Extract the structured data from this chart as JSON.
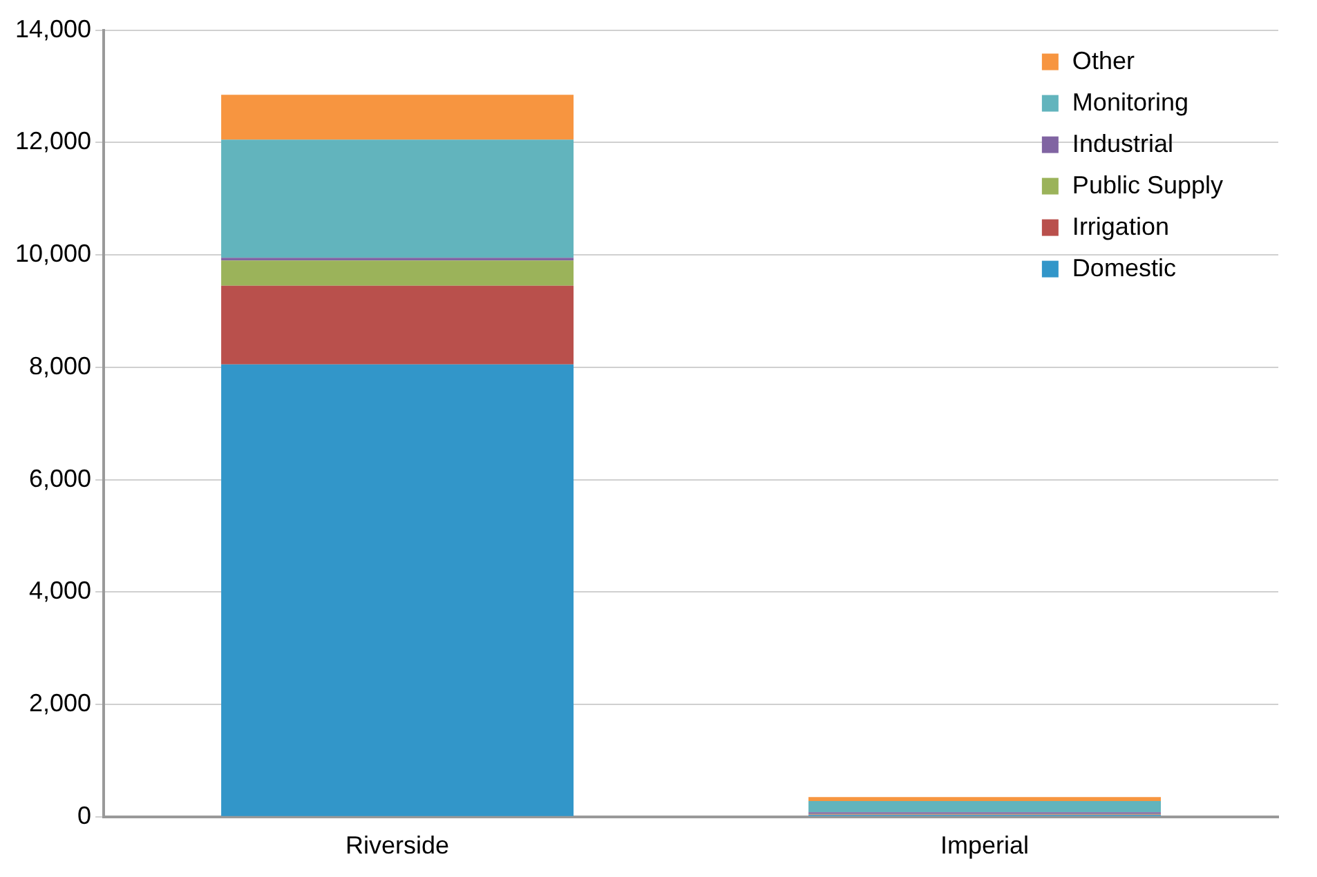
{
  "chart_data": {
    "type": "bar",
    "stacked": true,
    "categories": [
      "Riverside",
      "Imperial"
    ],
    "series": [
      {
        "name": "Domestic",
        "color": "#3296c9",
        "values": [
          8050,
          30
        ]
      },
      {
        "name": "Irrigation",
        "color": "#b9504c",
        "values": [
          1400,
          10
        ]
      },
      {
        "name": "Public Supply",
        "color": "#9bb35a",
        "values": [
          450,
          10
        ]
      },
      {
        "name": "Industrial",
        "color": "#8064a2",
        "values": [
          50,
          30
        ]
      },
      {
        "name": "Monitoring",
        "color": "#62b4bd",
        "values": [
          2100,
          200
        ]
      },
      {
        "name": "Other",
        "color": "#f79540",
        "values": [
          800,
          70
        ]
      }
    ],
    "ylim": [
      0,
      14000
    ],
    "yticks": [
      0,
      {
        "value": 2000,
        "label": "2,000"
      },
      {
        "value": 4000,
        "label": "4,000"
      },
      {
        "value": 6000,
        "label": "6,000"
      },
      {
        "value": 8000,
        "label": "8,000"
      },
      {
        "value": 10000,
        "label": "10,000"
      },
      {
        "value": 12000,
        "label": "12,000"
      },
      {
        "value": 14000,
        "label": "14,000"
      }
    ],
    "grid": "y",
    "legend": "top right"
  }
}
